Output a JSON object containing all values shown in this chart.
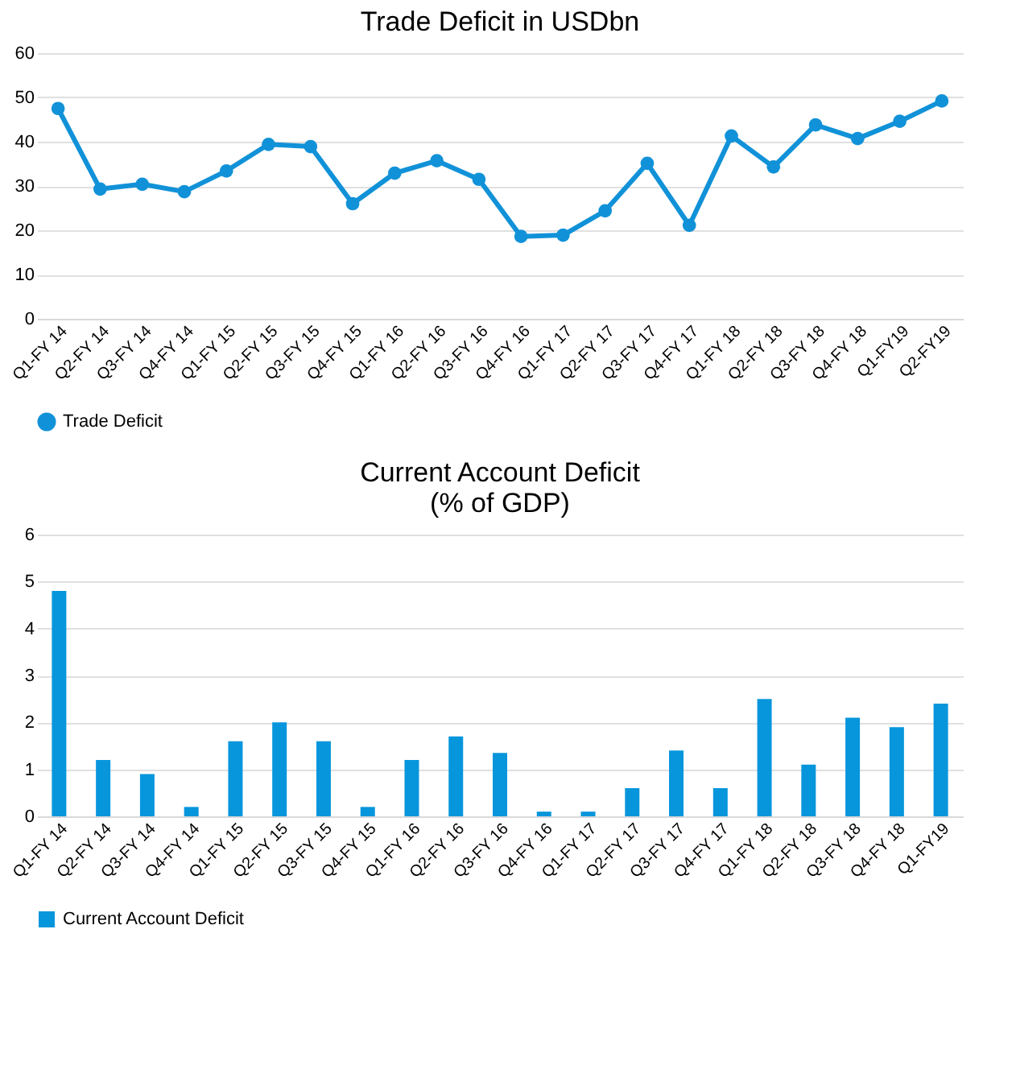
{
  "chart_data": [
    {
      "type": "line",
      "title": "Trade Deficit in USDbn",
      "categories": [
        "Q1-FY 14",
        "Q2-FY 14",
        "Q3-FY 14",
        "Q4-FY 14",
        "Q1-FY 15",
        "Q2-FY 15",
        "Q3-FY 15",
        "Q4-FY 15",
        "Q1-FY 16",
        "Q2-FY 16",
        "Q3-FY 16",
        "Q4-FY 16",
        "Q1-FY 17",
        "Q2-FY 17",
        "Q3-FY 17",
        "Q4-FY 17",
        "Q1-FY 18",
        "Q2-FY 18",
        "Q3-FY 18",
        "Q4-FY 18",
        "Q1-FY19",
        "Q2-FY19"
      ],
      "series": [
        {
          "name": "Trade Deficit",
          "color": "#1192d8",
          "values": [
            47.5,
            29.3,
            30.4,
            28.7,
            33.4,
            39.4,
            38.9,
            26,
            32.9,
            35.7,
            31.5,
            18.6,
            18.9,
            24.4,
            35.1,
            21.1,
            41.3,
            34.3,
            43.8,
            40.7,
            44.6,
            49.2
          ]
        }
      ],
      "ylim": [
        0,
        60
      ],
      "yticks": [
        0,
        10,
        20,
        30,
        40,
        50,
        60
      ],
      "grid": "y",
      "legend": "bottom",
      "marker": "circle"
    },
    {
      "type": "bar",
      "title": "Current Account Deficit\n(% of GDP)",
      "categories": [
        "Q1-FY 14",
        "Q2-FY 14",
        "Q3-FY 14",
        "Q4-FY 14",
        "Q1-FY 15",
        "Q2-FY 15",
        "Q3-FY 15",
        "Q4-FY 15",
        "Q1-FY 16",
        "Q2-FY 16",
        "Q3-FY 16",
        "Q4-FY 16",
        "Q1-FY 17",
        "Q2-FY 17",
        "Q3-FY 17",
        "Q4-FY 17",
        "Q1-FY 18",
        "Q2-FY 18",
        "Q3-FY 18",
        "Q4-FY 18",
        "Q1-FY19"
      ],
      "series": [
        {
          "name": "Current Account Deficit",
          "color": "#0796dc",
          "values": [
            4.8,
            1.2,
            0.9,
            0.2,
            1.6,
            2.0,
            1.6,
            0.2,
            1.2,
            1.7,
            1.35,
            0.1,
            0.1,
            0.6,
            1.4,
            0.6,
            2.5,
            1.1,
            2.1,
            1.9,
            2.4
          ]
        }
      ],
      "ylim": [
        0,
        6
      ],
      "yticks": [
        0,
        1,
        2,
        3,
        4,
        5,
        6
      ],
      "grid": "y",
      "legend": "bottom"
    }
  ]
}
